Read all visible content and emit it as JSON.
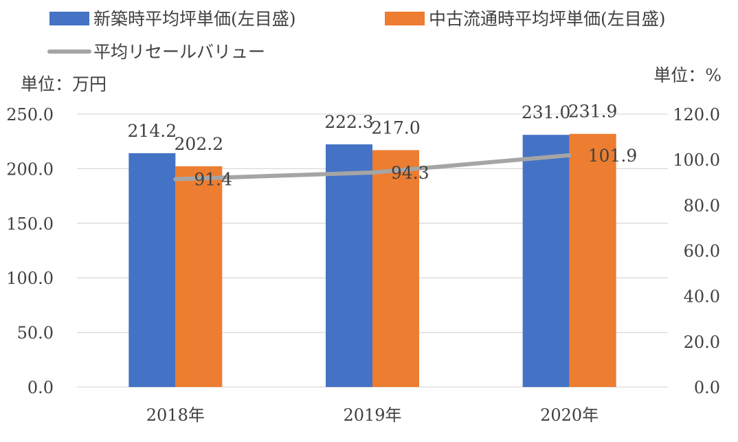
{
  "chart_data": {
    "type": "bar",
    "categories": [
      "2018年",
      "2019年",
      "2020年"
    ],
    "series": [
      {
        "name": "新築時平均坪単価(左目盛)",
        "axis": "left",
        "type": "bar",
        "color": "#4472C4",
        "values": [
          214.2,
          222.3,
          231.0
        ]
      },
      {
        "name": "中古流通時平均坪単価(左目盛)",
        "axis": "left",
        "type": "bar",
        "color": "#ED7D31",
        "values": [
          202.2,
          217.0,
          231.9
        ]
      },
      {
        "name": "平均リセールバリュー",
        "axis": "right",
        "type": "line",
        "color": "#A5A5A5",
        "values": [
          91.4,
          94.3,
          101.9
        ]
      }
    ],
    "left_axis": {
      "unit_label": "単位：万円",
      "range": [
        0,
        250
      ],
      "ticks": [
        "0.0",
        "50.0",
        "100.0",
        "150.0",
        "200.0",
        "250.0"
      ]
    },
    "right_axis": {
      "unit_label": "単位：%",
      "range": [
        0,
        120
      ],
      "ticks": [
        "0.0",
        "20.0",
        "40.0",
        "60.0",
        "80.0",
        "100.0",
        "120.0"
      ]
    },
    "data_labels": {
      "bars": [
        [
          "214.2",
          "222.3",
          "231.0"
        ],
        [
          "202.2",
          "217.0",
          "231.9"
        ]
      ],
      "line": [
        "91.4",
        "94.3",
        "101.9"
      ]
    },
    "grid": true,
    "legend_position": "top"
  }
}
